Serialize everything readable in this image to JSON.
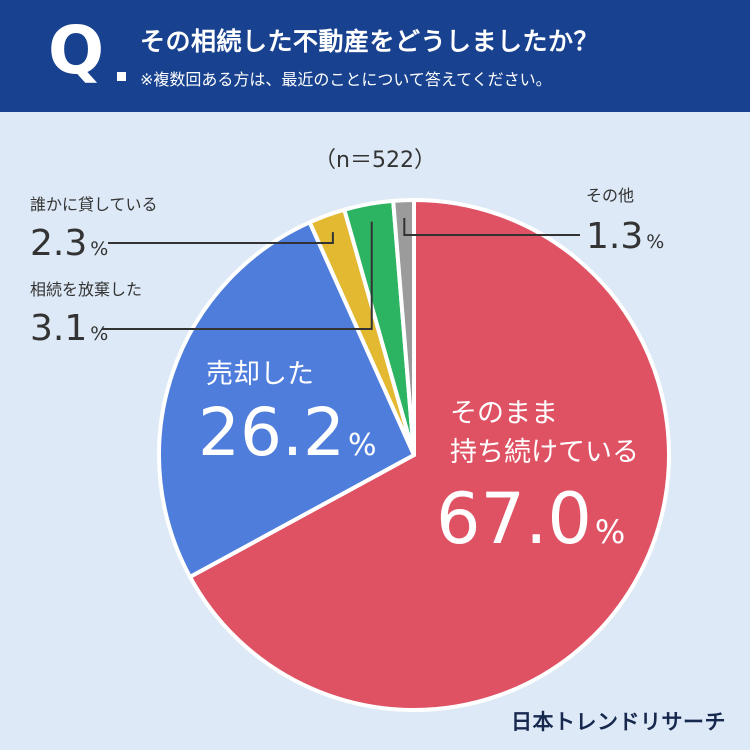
{
  "header": {
    "q_mark": "Q",
    "title": "その相続した不動産をどうしましたか？",
    "note": "※複数回ある方は、最近のことについて答えてください。"
  },
  "sample": "（n＝522）",
  "brand": "日本トレンドリサーチ",
  "colors": {
    "header_bg": "#18428f",
    "background": "#dde9f6",
    "keep": "#df5264",
    "sell": "#4f7ddc",
    "lend": "#e3b932",
    "abandon": "#2db463",
    "other": "#9b9b9b"
  },
  "chart_data": {
    "type": "pie",
    "title": "その相続した不動産をどうしましたか？",
    "n": 522,
    "slices": [
      {
        "key": "keep",
        "label_lines": [
          "そのまま",
          "持ち続けている"
        ],
        "value": 67.0,
        "value_text": "67.0",
        "color": "#df5264"
      },
      {
        "key": "sell",
        "label_lines": [
          "売却した"
        ],
        "value": 26.2,
        "value_text": "26.2",
        "color": "#4f7ddc"
      },
      {
        "key": "lend",
        "label_lines": [
          "誰かに貸している"
        ],
        "value": 2.3,
        "value_text": "2.3",
        "color": "#e3b932"
      },
      {
        "key": "abandon",
        "label_lines": [
          "相続を放棄した"
        ],
        "value": 3.1,
        "value_text": "3.1",
        "color": "#2db463"
      },
      {
        "key": "other",
        "label_lines": [
          "その他"
        ],
        "value": 1.3,
        "value_text": "1.3",
        "color": "#9b9b9b"
      }
    ],
    "unit": "%"
  }
}
